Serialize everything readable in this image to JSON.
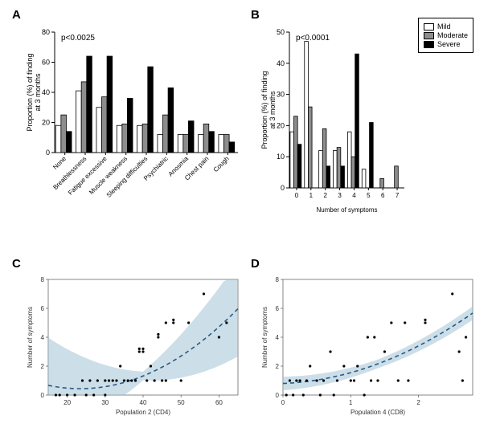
{
  "colors": {
    "mild": "#ffffff",
    "moderate": "#8d8d8d",
    "severe": "#000000",
    "outline": "#000000",
    "ci_fill": "#a3c2d6",
    "ci_line": "#2a5a82",
    "bg": "#ffffff"
  },
  "legend": {
    "items": [
      {
        "label": "Mild",
        "swatch": "#ffffff"
      },
      {
        "label": "Moderate",
        "swatch": "#8d8d8d"
      },
      {
        "label": "Severe",
        "swatch": "#000000"
      }
    ]
  },
  "panelA": {
    "label": "A",
    "pvalue": "p<0.0025",
    "ylabel": "Proportion (%) of finding\nat 3 months",
    "ylim": [
      0,
      80
    ],
    "ytick_step": 20,
    "categories": [
      "None",
      "Breathlessness",
      "Fatigue excessive",
      "Muscle weakness",
      "Sleeping difficulties",
      "Psychiatric",
      "Anosmia",
      "Chest pain",
      "Cough"
    ],
    "mild": [
      18,
      41,
      30,
      18,
      18,
      12,
      12,
      12,
      12
    ],
    "moderate": [
      25,
      47,
      37,
      19,
      19,
      25,
      12,
      19,
      12
    ],
    "severe": [
      14,
      64,
      64,
      36,
      57,
      43,
      21,
      14,
      7
    ],
    "bar_width": 0.26
  },
  "panelB": {
    "label": "B",
    "pvalue": "p<0.0001",
    "ylabel": "Proportion (%) of finding\nat 3 months",
    "ylim": [
      0,
      50
    ],
    "ytick_step": 10,
    "categories": [
      "0",
      "1",
      "2",
      "3",
      "4",
      "5",
      "6",
      "7"
    ],
    "xlabel": "Number of symptoms",
    "mild": [
      18,
      47,
      12,
      12,
      18,
      6,
      0,
      0
    ],
    "moderate": [
      23,
      26,
      19,
      13,
      10,
      0,
      3,
      7
    ],
    "severe": [
      14,
      0,
      7,
      7,
      43,
      21,
      0,
      0
    ],
    "bar_width": 0.26
  },
  "panelC": {
    "label": "C",
    "xlabel": "Population 2 (CD4)",
    "ylabel": "Number of symptoms",
    "xlim": [
      15,
      65
    ],
    "ylim": [
      0,
      8
    ],
    "xticks": [
      20,
      30,
      40,
      50,
      60
    ],
    "yticks": [
      0,
      2,
      4,
      6,
      8
    ],
    "points": [
      [
        17,
        0
      ],
      [
        18,
        0
      ],
      [
        20,
        0
      ],
      [
        22,
        0
      ],
      [
        24,
        1
      ],
      [
        25,
        0
      ],
      [
        26,
        1
      ],
      [
        27,
        0
      ],
      [
        28,
        1
      ],
      [
        30,
        0
      ],
      [
        30,
        1
      ],
      [
        31,
        1
      ],
      [
        32,
        1
      ],
      [
        33,
        1
      ],
      [
        34,
        2
      ],
      [
        35,
        1
      ],
      [
        36,
        1
      ],
      [
        37,
        1
      ],
      [
        38,
        1
      ],
      [
        39,
        3
      ],
      [
        39,
        3.2
      ],
      [
        40,
        3
      ],
      [
        40,
        3.2
      ],
      [
        41,
        1
      ],
      [
        42,
        2
      ],
      [
        43,
        1
      ],
      [
        44,
        4
      ],
      [
        44,
        4.2
      ],
      [
        45,
        1
      ],
      [
        46,
        5
      ],
      [
        46,
        1
      ],
      [
        48,
        5
      ],
      [
        48,
        5.2
      ],
      [
        50,
        1
      ],
      [
        52,
        5
      ],
      [
        56,
        7
      ],
      [
        60,
        4
      ],
      [
        62,
        5
      ]
    ],
    "fit": {
      "a": 0.0032,
      "b": -0.15,
      "c": 2.2
    }
  },
  "panelD": {
    "label": "D",
    "xlabel": "Population 4 (CD8)",
    "ylabel": "Number of symptoms",
    "xlim": [
      0,
      2.8
    ],
    "ylim": [
      0,
      8
    ],
    "xticks": [
      0,
      1,
      2
    ],
    "yticks": [
      0,
      2,
      4,
      6,
      8
    ],
    "points": [
      [
        0.05,
        0
      ],
      [
        0.1,
        1
      ],
      [
        0.15,
        0
      ],
      [
        0.2,
        1
      ],
      [
        0.25,
        1
      ],
      [
        0.3,
        0
      ],
      [
        0.35,
        1
      ],
      [
        0.4,
        2
      ],
      [
        0.5,
        1
      ],
      [
        0.55,
        0
      ],
      [
        0.6,
        1
      ],
      [
        0.7,
        3
      ],
      [
        0.75,
        0
      ],
      [
        0.8,
        1
      ],
      [
        0.9,
        2
      ],
      [
        1.0,
        1
      ],
      [
        1.05,
        1
      ],
      [
        1.1,
        2
      ],
      [
        1.2,
        0
      ],
      [
        1.25,
        4
      ],
      [
        1.3,
        1
      ],
      [
        1.35,
        4
      ],
      [
        1.4,
        1
      ],
      [
        1.5,
        3
      ],
      [
        1.6,
        5
      ],
      [
        1.7,
        1
      ],
      [
        1.8,
        5
      ],
      [
        1.85,
        1
      ],
      [
        2.1,
        5
      ],
      [
        2.1,
        5.2
      ],
      [
        2.5,
        7
      ],
      [
        2.6,
        3
      ],
      [
        2.65,
        1
      ],
      [
        2.7,
        4
      ]
    ],
    "fit": {
      "a": 0.55,
      "b": 0.2,
      "c": 0.8
    }
  }
}
